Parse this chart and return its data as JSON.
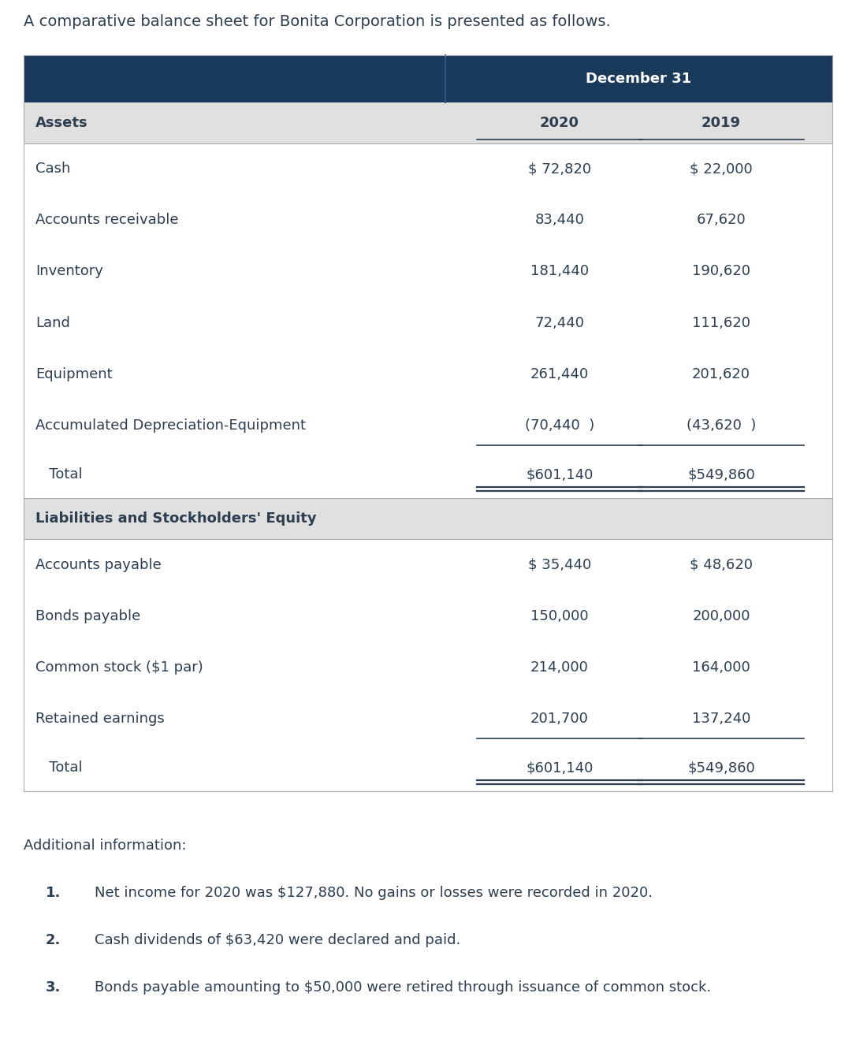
{
  "title": "A comparative balance sheet for Bonita Corporation is presented as follows.",
  "header_bg_color": "#1a3a5c",
  "header_text_color": "#ffffff",
  "subheader_bg_color": "#e0e0e0",
  "text_color": "#2c3e50",
  "col_header": "December 31",
  "col1": "2020",
  "col2": "2019",
  "assets_label": "Assets",
  "liabilities_label": "Liabilities and Stockholders' Equity",
  "asset_rows": [
    {
      "label": "Cash",
      "v2020": "$ 72,820",
      "v2019": "$ 22,000"
    },
    {
      "label": "Accounts receivable",
      "v2020": "83,440",
      "v2019": "67,620"
    },
    {
      "label": "Inventory",
      "v2020": "181,440",
      "v2019": "190,620"
    },
    {
      "label": "Land",
      "v2020": "72,440",
      "v2019": "111,620"
    },
    {
      "label": "Equipment",
      "v2020": "261,440",
      "v2019": "201,620"
    },
    {
      "label": "Accumulated Depreciation-Equipment",
      "v2020": "(70,440  )",
      "v2019": "(43,620  )"
    }
  ],
  "asset_total": {
    "label": "   Total",
    "v2020": "$601,140",
    "v2019": "$549,860"
  },
  "liability_rows": [
    {
      "label": "Accounts payable",
      "v2020": "$ 35,440",
      "v2019": "$ 48,620"
    },
    {
      "label": "Bonds payable",
      "v2020": "150,000",
      "v2019": "200,000"
    },
    {
      "label": "Common stock ($1 par)",
      "v2020": "214,000",
      "v2019": "164,000"
    },
    {
      "label": "Retained earnings",
      "v2020": "201,700",
      "v2019": "137,240"
    }
  ],
  "liability_total": {
    "label": "   Total",
    "v2020": "$601,140",
    "v2019": "$549,860"
  },
  "additional_info_label": "Additional information:",
  "additional_items": [
    "Net income for 2020 was $127,880. No gains or losses were recorded in 2020.",
    "Cash dividends of $63,420 were declared and paid.",
    "Bonds payable amounting to $50,000 were retired through issuance of common stock."
  ],
  "title_fontsize": 14,
  "header_fontsize": 13,
  "data_fontsize": 13,
  "addl_fontsize": 13
}
